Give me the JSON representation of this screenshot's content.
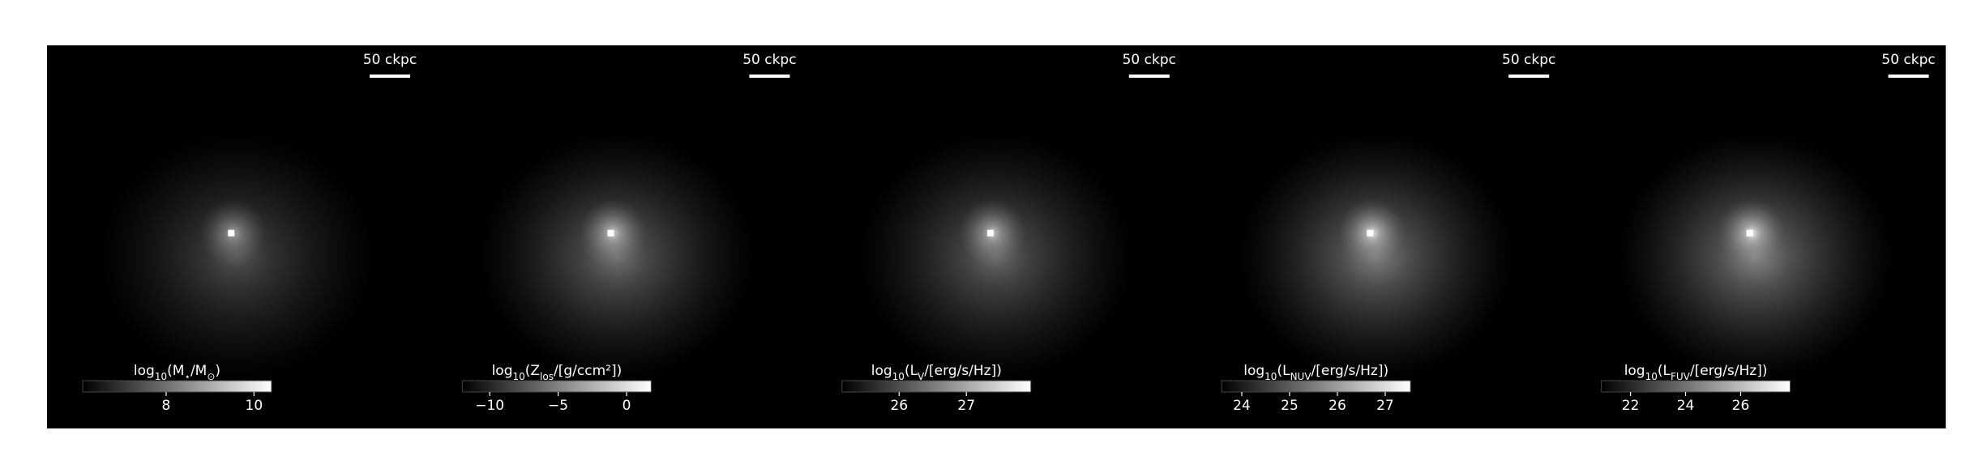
{
  "chart_data": [
    {
      "type": "image",
      "scale_bar_label": "50 ckpc",
      "glow": 0.55,
      "colorbar": {
        "label": [
          {
            "t": "log"
          },
          {
            "t": "10",
            "sub": true
          },
          {
            "t": "(M"
          },
          {
            "t": "⋆",
            "sub": true
          },
          {
            "t": "/M"
          },
          {
            "t": "⊙",
            "sub": true
          },
          {
            "t": ")"
          }
        ],
        "clim": [
          6.1,
          10.4
        ],
        "ticks": [
          8,
          10
        ]
      }
    },
    {
      "type": "image",
      "scale_bar_label": "50 ckpc",
      "glow": 0.75,
      "colorbar": {
        "label": [
          {
            "t": "log"
          },
          {
            "t": "10",
            "sub": true
          },
          {
            "t": "(Z"
          },
          {
            "t": "los",
            "sub": true
          },
          {
            "t": "/[g/ccm²])"
          }
        ],
        "clim": [
          -12.0,
          1.8
        ],
        "ticks": [
          {
            "value": -10,
            "label": "−10"
          },
          {
            "value": -5,
            "label": "−5"
          },
          0
        ]
      }
    },
    {
      "type": "image",
      "scale_bar_label": "50 ckpc",
      "glow": 0.7,
      "colorbar": {
        "label": [
          {
            "t": "log"
          },
          {
            "t": "10",
            "sub": true
          },
          {
            "t": "(L"
          },
          {
            "t": "V",
            "sub": true
          },
          {
            "t": "/[erg/s/Hz])"
          }
        ],
        "clim": [
          25.15,
          27.96
        ],
        "ticks": [
          26,
          27
        ]
      }
    },
    {
      "type": "image",
      "scale_bar_label": "50 ckpc",
      "glow": 0.85,
      "colorbar": {
        "label": [
          {
            "t": "log"
          },
          {
            "t": "10",
            "sub": true
          },
          {
            "t": "(L"
          },
          {
            "t": "NUV",
            "sub": true
          },
          {
            "t": "/[erg/s/Hz])"
          }
        ],
        "clim": [
          23.58,
          27.53
        ],
        "ticks": [
          24,
          25,
          26,
          27
        ]
      }
    },
    {
      "type": "image",
      "scale_bar_label": "50 ckpc",
      "glow": 0.9,
      "colorbar": {
        "label": [
          {
            "t": "log"
          },
          {
            "t": "10",
            "sub": true
          },
          {
            "t": "(L"
          },
          {
            "t": "FUV",
            "sub": true
          },
          {
            "t": "/[erg/s/Hz])"
          }
        ],
        "clim": [
          20.94,
          27.8
        ],
        "ticks": [
          22,
          24,
          26
        ]
      }
    }
  ]
}
